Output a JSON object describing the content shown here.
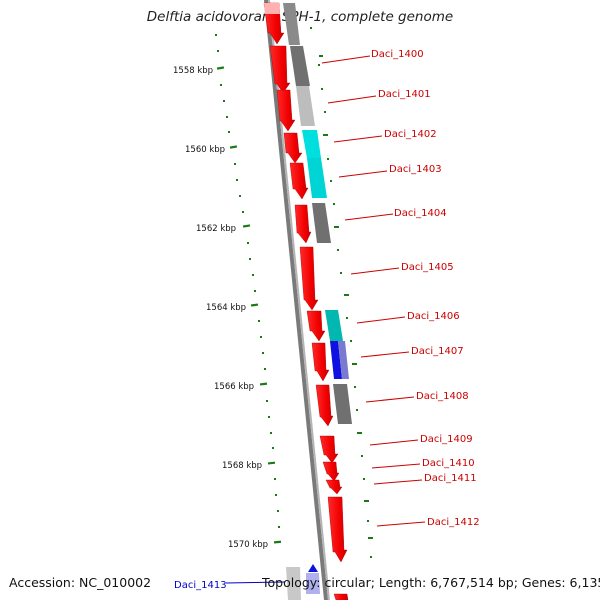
{
  "title": "Delftia acidovorans SPH-1, complete genome",
  "footer": {
    "accession": "Accession: NC_010002",
    "topology": "Topology: circular; Length: 6,767,514 bp; Genes: 6,135"
  },
  "scale_labels": [
    "1558 kbp",
    "1560 kbp",
    "1562 kbp",
    "1564 kbp",
    "1566 kbp",
    "1568 kbp",
    "1570 kbp"
  ],
  "gene_labels": [
    "Daci_1400",
    "Daci_1401",
    "Daci_1402",
    "Daci_1403",
    "Daci_1404",
    "Daci_1405",
    "Daci_1406",
    "Daci_1407",
    "Daci_1408",
    "Daci_1409",
    "Daci_1410",
    "Daci_1411",
    "Daci_1412",
    "Daci_1413"
  ],
  "colors": {
    "backbone": "#7a7a7a",
    "gene_forward": "#ff0000",
    "label_forward": "#cc0000",
    "label_reverse": "#0000cc",
    "tick": "#1a7a1a",
    "cog_gray": "#8a8a8a",
    "cog_dark": "#707070",
    "cog_light": "#bdbdbd",
    "cog_cyan": "#00dede",
    "cog_teal": "#00b8b0",
    "cog_blue": "#1010e0"
  }
}
